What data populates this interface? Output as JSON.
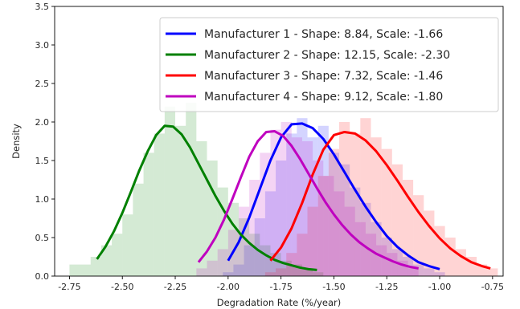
{
  "chart_data": {
    "type": "line",
    "title": "",
    "xlabel": "Degradation Rate (%/year)",
    "ylabel": "Density",
    "xlim": [
      -2.82,
      -0.7
    ],
    "ylim": [
      0,
      3.5
    ],
    "xticks": [
      -2.75,
      -2.5,
      -2.25,
      -2.0,
      -1.75,
      -1.5,
      -1.25,
      -1.0,
      -0.75
    ],
    "xtick_labels": [
      "-2.75",
      "-2.50",
      "-2.25",
      "-2.00",
      "-1.75",
      "-1.50",
      "-1.25",
      "-1.00",
      "-0.75"
    ],
    "yticks": [
      0,
      0.5,
      1.0,
      1.5,
      2.0,
      2.5,
      3.0,
      3.5
    ],
    "ytick_labels": [
      "0.0",
      "0.5",
      "1.0",
      "1.5",
      "2.0",
      "2.5",
      "3.0",
      "3.5"
    ],
    "legend_position": "top-right",
    "series": [
      {
        "name": "Manufacturer 1 - Shape: 8.84, Scale: -1.66",
        "color": "#0000ff",
        "x": [
          -2.0,
          -1.95,
          -1.9,
          -1.85,
          -1.8,
          -1.75,
          -1.7,
          -1.65,
          -1.6,
          -1.55,
          -1.5,
          -1.45,
          -1.4,
          -1.35,
          -1.3,
          -1.25,
          -1.2,
          -1.15,
          -1.1,
          -1.05,
          -1.0
        ],
        "y": [
          0.2,
          0.44,
          0.76,
          1.13,
          1.5,
          1.8,
          1.97,
          1.98,
          1.92,
          1.78,
          1.58,
          1.35,
          1.12,
          0.9,
          0.7,
          0.52,
          0.38,
          0.27,
          0.18,
          0.13,
          0.09
        ],
        "hist_bins": [
          -2.025,
          -1.975,
          -1.925,
          -1.875,
          -1.825,
          -1.775,
          -1.725,
          -1.675,
          -1.625,
          -1.575,
          -1.525,
          -1.475,
          -1.425,
          -1.375,
          -1.325,
          -1.275,
          -1.225,
          -1.175,
          -1.125,
          -1.075,
          -1.025
        ],
        "hist_density": [
          0.05,
          0.15,
          0.4,
          0.75,
          1.1,
          1.5,
          1.85,
          2.05,
          1.8,
          1.95,
          1.6,
          1.45,
          1.15,
          0.95,
          0.7,
          0.5,
          0.35,
          0.25,
          0.15,
          0.1,
          0.05
        ]
      },
      {
        "name": "Manufacturer 2 - Shape: 12.15, Scale: -2.30",
        "color": "#008000",
        "x": [
          -2.62,
          -2.58,
          -2.54,
          -2.5,
          -2.46,
          -2.42,
          -2.38,
          -2.34,
          -2.3,
          -2.26,
          -2.22,
          -2.18,
          -2.14,
          -2.1,
          -2.06,
          -2.02,
          -1.98,
          -1.94,
          -1.9,
          -1.86,
          -1.82,
          -1.78,
          -1.74,
          -1.7,
          -1.66,
          -1.62,
          -1.58
        ],
        "y": [
          0.22,
          0.38,
          0.58,
          0.82,
          1.09,
          1.37,
          1.62,
          1.83,
          1.95,
          1.94,
          1.84,
          1.67,
          1.46,
          1.25,
          1.04,
          0.85,
          0.68,
          0.54,
          0.43,
          0.34,
          0.27,
          0.21,
          0.17,
          0.14,
          0.11,
          0.09,
          0.08
        ],
        "hist_bins": [
          -2.75,
          -2.7,
          -2.65,
          -2.6,
          -2.55,
          -2.5,
          -2.45,
          -2.4,
          -2.35,
          -2.3,
          -2.25,
          -2.2,
          -2.15,
          -2.1,
          -2.05,
          -2.0,
          -1.95,
          -1.9,
          -1.85,
          -1.8,
          -1.75,
          -1.7,
          -1.65,
          -1.6
        ],
        "hist_density": [
          0.15,
          0.15,
          0.25,
          0.4,
          0.55,
          0.8,
          1.2,
          1.6,
          1.85,
          2.2,
          1.95,
          2.25,
          1.75,
          1.5,
          1.15,
          0.95,
          0.75,
          0.55,
          0.4,
          0.3,
          0.2,
          0.15,
          0.1,
          0.05
        ]
      },
      {
        "name": "Manufacturer 3 - Shape: 7.32, Scale: -1.46",
        "color": "#ff0000",
        "x": [
          -1.8,
          -1.75,
          -1.7,
          -1.65,
          -1.6,
          -1.55,
          -1.5,
          -1.45,
          -1.4,
          -1.35,
          -1.3,
          -1.25,
          -1.2,
          -1.15,
          -1.1,
          -1.05,
          -1.0,
          -0.95,
          -0.9,
          -0.85,
          -0.8,
          -0.76
        ],
        "y": [
          0.2,
          0.37,
          0.62,
          0.95,
          1.32,
          1.64,
          1.83,
          1.87,
          1.85,
          1.76,
          1.62,
          1.44,
          1.24,
          1.03,
          0.83,
          0.65,
          0.49,
          0.36,
          0.26,
          0.18,
          0.13,
          0.1
        ],
        "hist_bins": [
          -1.825,
          -1.775,
          -1.725,
          -1.675,
          -1.625,
          -1.575,
          -1.525,
          -1.475,
          -1.425,
          -1.375,
          -1.325,
          -1.275,
          -1.225,
          -1.175,
          -1.125,
          -1.075,
          -1.025,
          -0.975,
          -0.925,
          -0.875,
          -0.825,
          -0.775
        ],
        "hist_density": [
          0.05,
          0.1,
          0.3,
          0.55,
          0.9,
          1.3,
          1.65,
          2.0,
          1.85,
          2.05,
          1.8,
          1.65,
          1.45,
          1.25,
          1.05,
          0.85,
          0.65,
          0.5,
          0.35,
          0.25,
          0.15,
          0.1
        ]
      },
      {
        "name": "Manufacturer 4 - Shape: 9.12, Scale: -1.80",
        "color": "#bf00bf",
        "x": [
          -2.14,
          -2.1,
          -2.06,
          -2.02,
          -1.98,
          -1.94,
          -1.9,
          -1.86,
          -1.82,
          -1.78,
          -1.74,
          -1.7,
          -1.66,
          -1.62,
          -1.58,
          -1.54,
          -1.5,
          -1.46,
          -1.42,
          -1.38,
          -1.34,
          -1.3,
          -1.26,
          -1.22,
          -1.18,
          -1.14,
          -1.1
        ],
        "y": [
          0.18,
          0.32,
          0.5,
          0.73,
          1.0,
          1.28,
          1.55,
          1.75,
          1.87,
          1.88,
          1.82,
          1.69,
          1.52,
          1.33,
          1.14,
          0.96,
          0.8,
          0.66,
          0.54,
          0.44,
          0.36,
          0.29,
          0.24,
          0.19,
          0.15,
          0.12,
          0.1
        ],
        "hist_bins": [
          -2.15,
          -2.1,
          -2.05,
          -2.0,
          -1.95,
          -1.9,
          -1.85,
          -1.8,
          -1.75,
          -1.7,
          -1.65,
          -1.6,
          -1.55,
          -1.5,
          -1.45,
          -1.4,
          -1.35,
          -1.3,
          -1.25,
          -1.2,
          -1.15
        ],
        "hist_density": [
          0.1,
          0.2,
          0.35,
          0.6,
          0.9,
          1.25,
          1.6,
          1.9,
          2.0,
          1.8,
          1.75,
          1.5,
          1.3,
          1.1,
          0.9,
          0.7,
          0.55,
          0.4,
          0.3,
          0.2,
          0.1
        ]
      }
    ]
  }
}
